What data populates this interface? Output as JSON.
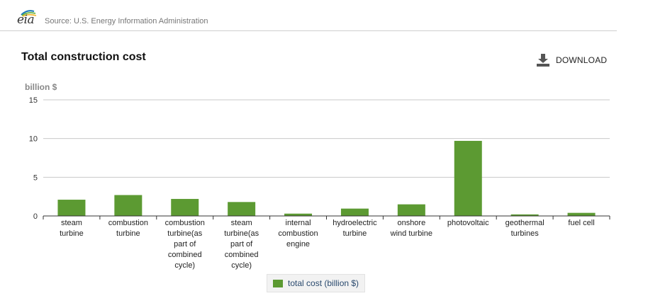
{
  "header": {
    "logo_text": "eia",
    "source": "Source: U.S. Energy Information Administration"
  },
  "toolbar": {
    "download_label": "DOWNLOAD",
    "download_icon": "download-icon"
  },
  "colors": {
    "bar": "#5c9a32",
    "grid": "#c8c8c8",
    "axis": "#333333"
  },
  "chart_data": {
    "type": "bar",
    "title": "Total construction cost",
    "ylabel": "billion $",
    "xlabel": "",
    "ylim": [
      0,
      15
    ],
    "yticks": [
      0,
      5,
      10,
      15
    ],
    "grid": true,
    "legend_position": "bottom",
    "categories": [
      [
        "steam",
        "turbine"
      ],
      [
        "combustion",
        "turbine"
      ],
      [
        "combustion",
        "turbine(as",
        "part of",
        "combined",
        "cycle)"
      ],
      [
        "steam",
        "turbine(as",
        "part of",
        "combined",
        "cycle)"
      ],
      [
        "internal",
        "combustion",
        "engine"
      ],
      [
        "hydroelectric",
        "turbine"
      ],
      [
        "onshore",
        "wind turbine"
      ],
      [
        "photovoltaic"
      ],
      [
        "geothermal",
        "turbines"
      ],
      [
        "fuel cell"
      ]
    ],
    "series": [
      {
        "name": "total cost (billion $)",
        "values": [
          2.1,
          2.7,
          2.2,
          1.8,
          0.3,
          0.95,
          1.5,
          9.7,
          0.2,
          0.4
        ]
      }
    ]
  }
}
